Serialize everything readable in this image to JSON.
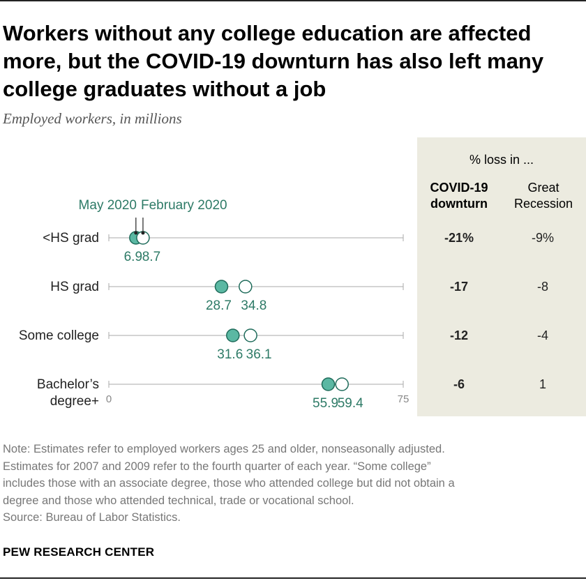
{
  "title_lines": [
    "Workers without any college education are affected",
    "more, but the COVID-19 downturn has also left many",
    "college graduates without a job"
  ],
  "subtitle": "Employed workers, in millions",
  "chart_data": {
    "type": "dot",
    "categories": [
      "<HS grad",
      "HS grad",
      "Some college",
      "Bachelor's degree+"
    ],
    "category_lines": [
      [
        "<HS grad"
      ],
      [
        "HS grad"
      ],
      [
        "Some college"
      ],
      [
        "Bachelor’s",
        "degree+"
      ]
    ],
    "series": [
      {
        "name": "May 2020",
        "values": [
          6.9,
          28.7,
          31.6,
          55.9
        ],
        "value_labels": [
          "6.9",
          "28.7",
          "31.6",
          "55.9"
        ]
      },
      {
        "name": "February 2020",
        "values": [
          8.7,
          34.8,
          36.1,
          59.4
        ],
        "value_labels": [
          "8.7",
          "34.8",
          "36.1",
          "59.4"
        ]
      }
    ],
    "xlim": [
      0,
      75
    ],
    "axis_labels": [
      "0",
      "75"
    ],
    "colors": {
      "may": "#5bb8a3",
      "may_stroke": "#1e6b5a",
      "feb_fill": "#ffffff",
      "feb_stroke": "#1e6b5a",
      "label": "#2d7a66",
      "axis": "#aaaaaa",
      "panel": "#ecebe0"
    }
  },
  "table": {
    "header": "% loss in ...",
    "col1": [
      "COVID-19",
      "downturn"
    ],
    "col2": [
      "Great",
      "Recession"
    ],
    "covid": [
      "-21%",
      "-17",
      "-12",
      "-6"
    ],
    "recession": [
      "-9%",
      "-8",
      "-4",
      "1"
    ]
  },
  "note_lines": [
    "Note: Estimates refer to employed workers ages 25 and older, nonseasonally adjusted.",
    "Estimates for 2007 and 2009 refer to the fourth quarter of each year. “Some college”",
    "includes those with an associate degree, those who attended college but did not obtain a",
    "degree and those who attended technical, trade or vocational school.",
    "Source: Bureau of Labor Statistics."
  ],
  "brand": "PEW RESEARCH CENTER"
}
